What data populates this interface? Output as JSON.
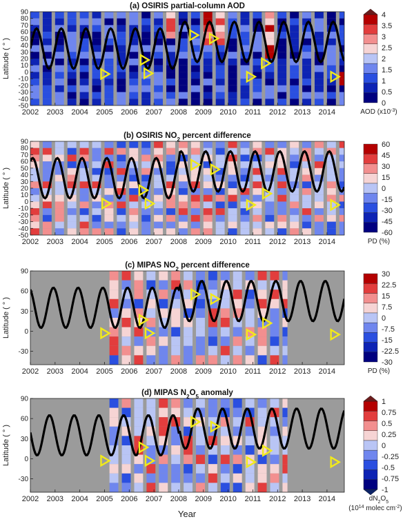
{
  "figure": {
    "xlabel": "Year",
    "ylabel": "Latitude ( ° )"
  },
  "colors": {
    "missing_data": "#9b9b9b",
    "contour_line": "#000000",
    "tropopause_line": "#000000",
    "eruption_marker": "#f2ea1a"
  },
  "chart_data": [
    {
      "type": "heatmap",
      "title": "(a) OSIRIS partial-column AOD",
      "xlabel": "",
      "ylabel": "Latitude ( ° )",
      "xlim": [
        2002,
        2014.7
      ],
      "ylim": [
        -50,
        90
      ],
      "x_ticks": [
        "2002",
        "2003",
        "2004",
        "2005",
        "2006",
        "2007",
        "2008",
        "2009",
        "2010",
        "2011",
        "2012",
        "2013",
        "2014"
      ],
      "y_ticks": [
        90,
        80,
        70,
        60,
        50,
        40,
        30,
        20,
        10,
        0,
        -10,
        -20,
        -30,
        -40,
        -50
      ],
      "colorbar": {
        "ticks": [
          "0",
          "0.5",
          "1",
          "1.5",
          "2",
          "2.5",
          "3",
          "3.5",
          "4"
        ],
        "levels": [
          0,
          0.5,
          1,
          1.5,
          2,
          2.5,
          3,
          3.5,
          4
        ],
        "colors": [
          "#00007f",
          "#0d23b4",
          "#2a4fe0",
          "#6f86ee",
          "#b9c5f5",
          "#f6d4d4",
          "#f28f8f",
          "#e23d3d",
          "#b40000"
        ],
        "top_arrow": true,
        "bottom_arrow": false,
        "label": "AOD (x10",
        "label_exp": "-3",
        "label_end": ")"
      },
      "field": [
        {
          "t": 2005.0,
          "lat": 0,
          "val": 1.6
        },
        {
          "t": 2006.6,
          "lat": 15,
          "val": 1.7
        },
        {
          "t": 2007.3,
          "lat": 70,
          "val": 3.4
        },
        {
          "t": 2008.9,
          "lat": 55,
          "val": 3.8
        },
        {
          "t": 2009.5,
          "lat": 60,
          "val": 3.6
        },
        {
          "t": 2011.6,
          "lat": 40,
          "val": 3.9
        },
        {
          "t": 2014.3,
          "lat": -5,
          "val": 3.2
        }
      ],
      "markers": [
        {
          "year": 2005.0,
          "lat": -3
        },
        {
          "year": 2006.6,
          "lat": 18
        },
        {
          "year": 2006.75,
          "lat": -2
        },
        {
          "year": 2008.6,
          "lat": 55
        },
        {
          "year": 2009.4,
          "lat": 50
        },
        {
          "year": 2010.9,
          "lat": -7
        },
        {
          "year": 2011.5,
          "lat": 13
        },
        {
          "year": 2014.3,
          "lat": -7
        }
      ]
    },
    {
      "type": "heatmap",
      "title": "(b) OSIRIS NO",
      "title_sub": "2",
      "title_end": " percent difference",
      "xlabel": "",
      "ylabel": "Latitude ( ° )",
      "xlim": [
        2002,
        2014.7
      ],
      "ylim": [
        -50,
        90
      ],
      "x_ticks": [
        "2002",
        "2003",
        "2004",
        "2005",
        "2006",
        "2007",
        "2008",
        "2009",
        "2010",
        "2011",
        "2012",
        "2013",
        "2014"
      ],
      "y_ticks": [
        90,
        80,
        70,
        60,
        50,
        40,
        30,
        20,
        10,
        0,
        -10,
        -20,
        -30,
        -40,
        -50
      ],
      "colorbar": {
        "ticks": [
          "-60",
          "-45",
          "-30",
          "-15",
          "0",
          "15",
          "30",
          "45",
          "60"
        ],
        "levels": [
          -60,
          -45,
          -30,
          -15,
          0,
          15,
          30,
          45,
          60
        ],
        "colors": [
          "#00007f",
          "#0d23b4",
          "#2a4fe0",
          "#6f86ee",
          "#b9c5f5",
          "#f6d4d4",
          "#f28f8f",
          "#e23d3d",
          "#b40000"
        ],
        "top_arrow": false,
        "bottom_arrow": false,
        "label": "PD (%)"
      },
      "markers": [
        {
          "year": 2005.05,
          "lat": -3
        },
        {
          "year": 2006.55,
          "lat": 17
        },
        {
          "year": 2006.8,
          "lat": -3
        },
        {
          "year": 2008.65,
          "lat": 55
        },
        {
          "year": 2009.45,
          "lat": 48
        },
        {
          "year": 2010.9,
          "lat": -5
        },
        {
          "year": 2011.55,
          "lat": 12
        },
        {
          "year": 2014.3,
          "lat": -5
        }
      ]
    },
    {
      "type": "heatmap",
      "title": "(c) MIPAS NO",
      "title_sub": "2",
      "title_end": " percent difference",
      "xlabel": "",
      "ylabel": "Latitude ( ° )",
      "xlim": [
        2002,
        2014.7
      ],
      "ylim": [
        -50,
        90
      ],
      "x_ticks": [
        "2002",
        "2003",
        "2004",
        "2005",
        "2006",
        "2007",
        "2008",
        "2009",
        "2010",
        "2011",
        "2012",
        "2013",
        "2014"
      ],
      "y_ticks": [
        90,
        60,
        30,
        0,
        -30
      ],
      "colorbar": {
        "ticks": [
          "-30",
          "-22.5",
          "-15",
          "-7.5",
          "0",
          "7.5",
          "15",
          "22.5",
          "30"
        ],
        "levels": [
          -30,
          -22.5,
          -15,
          -7.5,
          0,
          7.5,
          15,
          22.5,
          30
        ],
        "colors": [
          "#00007f",
          "#0d23b4",
          "#2a4fe0",
          "#6f86ee",
          "#b9c5f5",
          "#f6d4d4",
          "#f28f8f",
          "#e23d3d",
          "#b40000"
        ],
        "top_arrow": false,
        "bottom_arrow": false,
        "label": "PD (%)"
      },
      "markers": [
        {
          "year": 2005.0,
          "lat": -3
        },
        {
          "year": 2006.55,
          "lat": 17
        },
        {
          "year": 2006.8,
          "lat": -3
        },
        {
          "year": 2008.65,
          "lat": 55
        },
        {
          "year": 2009.45,
          "lat": 48
        },
        {
          "year": 2010.9,
          "lat": -5
        },
        {
          "year": 2011.55,
          "lat": 12
        },
        {
          "year": 2014.3,
          "lat": -5
        }
      ]
    },
    {
      "type": "heatmap",
      "title": "(d) MIPAS N",
      "title_sub": "2",
      "title_mid": "O",
      "title_sub2": "5",
      "title_end": " anomaly",
      "xlabel": "Year",
      "ylabel": "Latitude ( ° )",
      "xlim": [
        2002,
        2014.7
      ],
      "ylim": [
        -50,
        90
      ],
      "x_ticks": [
        "2002",
        "2003",
        "2004",
        "2005",
        "2006",
        "2007",
        "2008",
        "2009",
        "2010",
        "2011",
        "2012",
        "2013",
        "2014"
      ],
      "y_ticks": [
        90,
        60,
        30,
        0,
        -30
      ],
      "colorbar": {
        "ticks": [
          "-1",
          "-0.75",
          "-0.5",
          "-0.25",
          "0",
          "0.25",
          "0.5",
          "0.75",
          "1"
        ],
        "levels": [
          -1,
          -0.75,
          -0.5,
          -0.25,
          0,
          0.25,
          0.5,
          0.75,
          1
        ],
        "colors": [
          "#00007f",
          "#0d23b4",
          "#2a4fe0",
          "#6f86ee",
          "#b9c5f5",
          "#f6d4d4",
          "#f28f8f",
          "#e23d3d",
          "#b40000"
        ],
        "top_arrow": true,
        "bottom_arrow": true,
        "label": "dN",
        "label_sub": "2",
        "label_mid": "O",
        "label_sub2": "5",
        "label2": "(10",
        "label2_exp": "14",
        "label2_mid": " molec cm",
        "label2_exp2": "-2",
        "label2_end": ")"
      },
      "markers": [
        {
          "year": 2005.0,
          "lat": -3
        },
        {
          "year": 2006.55,
          "lat": 17
        },
        {
          "year": 2006.8,
          "lat": -3
        },
        {
          "year": 2008.65,
          "lat": 55
        },
        {
          "year": 2009.45,
          "lat": 48
        },
        {
          "year": 2010.9,
          "lat": -5
        },
        {
          "year": 2011.55,
          "lat": 12
        },
        {
          "year": 2014.3,
          "lat": -5
        }
      ]
    }
  ]
}
